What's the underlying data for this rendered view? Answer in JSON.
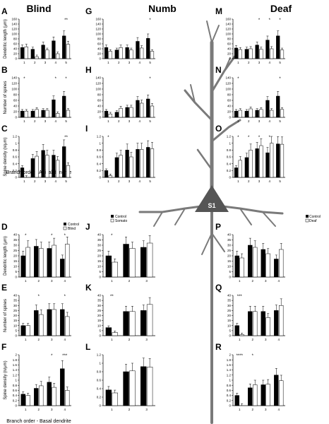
{
  "column_titles": [
    "Blind",
    "Numb",
    "Deaf"
  ],
  "center_label": "S1",
  "bottom_labels": {
    "apical": "Branch order - Apical dendrite",
    "basal": "Branch order - Basal dendrite"
  },
  "legend": {
    "blind": {
      "control": "Control",
      "other": "Blind"
    },
    "numb": {
      "control": "Control",
      "other": "Somato"
    },
    "deaf": {
      "control": "Control",
      "other": "Deaf"
    }
  },
  "colors": {
    "control": "#000000",
    "experimental": "#ffffff",
    "neuron": "#7a7a7a",
    "soma": "#555555"
  },
  "chart_data": [
    {
      "panel": "A",
      "type": "bar",
      "ylabel": "Dendritic length (μm)",
      "ylim": [
        0,
        160
      ],
      "yticks": [
        0,
        20,
        40,
        60,
        80,
        100,
        120,
        140,
        160
      ],
      "categories": [
        "1",
        "2",
        "3",
        "4",
        "5"
      ],
      "series": [
        {
          "name": "Control",
          "values": [
            45,
            38,
            55,
            72,
            92
          ]
        },
        {
          "name": "Blind",
          "values": [
            48,
            8,
            35,
            20,
            58
          ]
        }
      ],
      "stars": [
        "",
        "",
        "",
        "",
        "**"
      ]
    },
    {
      "panel": "B",
      "type": "bar",
      "ylabel": "Number of spines",
      "ylim": [
        0,
        140
      ],
      "yticks": [
        0,
        20,
        40,
        60,
        80,
        100,
        120,
        140
      ],
      "categories": [
        "1",
        "2",
        "3",
        "4",
        "5"
      ],
      "series": [
        {
          "name": "Control",
          "values": [
            22,
            22,
            25,
            62,
            75
          ]
        },
        {
          "name": "Blind",
          "values": [
            22,
            28,
            25,
            14,
            25
          ]
        }
      ],
      "stars": [
        "*",
        "",
        "",
        "*",
        "*"
      ]
    },
    {
      "panel": "C",
      "type": "bar",
      "ylabel": "Spine density (n/μm)",
      "ylim": [
        0,
        1.2
      ],
      "yticks": [
        0,
        0.2,
        0.4,
        0.6,
        0.8,
        1,
        1.2
      ],
      "categories": [
        "1",
        "2",
        "3",
        "4",
        "5"
      ],
      "series": [
        {
          "name": "Control",
          "values": [
            0.28,
            0.55,
            0.79,
            0.65,
            0.9
          ]
        },
        {
          "name": "Blind",
          "values": [
            0,
            0.62,
            0.65,
            0.5,
            0.35
          ]
        }
      ],
      "stars": [
        "",
        "",
        "",
        "",
        "**"
      ]
    },
    {
      "panel": "D",
      "type": "bar",
      "ylabel": "Dendritic length (μm)",
      "ylim": [
        0,
        40
      ],
      "yticks": [
        0,
        5,
        10,
        15,
        20,
        25,
        30,
        35,
        40
      ],
      "categories": [
        "1",
        "2",
        "3",
        "4"
      ],
      "series": [
        {
          "name": "Control",
          "values": [
            20,
            29,
            27,
            17
          ]
        },
        {
          "name": "Blind",
          "values": [
            28,
            27,
            30,
            31
          ]
        }
      ],
      "stars": [
        "*",
        "",
        "*",
        "*"
      ]
    },
    {
      "panel": "E",
      "type": "bar",
      "ylabel": "Number of spines",
      "ylim": [
        0,
        40
      ],
      "yticks": [
        0,
        5,
        10,
        15,
        20,
        25,
        30,
        35,
        40
      ],
      "categories": [
        "1",
        "2",
        "3",
        "4"
      ],
      "series": [
        {
          "name": "Control",
          "values": [
            10,
            25,
            26,
            26
          ]
        },
        {
          "name": "Blind",
          "values": [
            10,
            21,
            26,
            19
          ]
        }
      ],
      "stars": [
        "",
        "*",
        "",
        "*"
      ]
    },
    {
      "panel": "F",
      "type": "bar",
      "ylabel": "Spine density (n/μm)",
      "ylim": [
        0,
        2
      ],
      "yticks": [
        0,
        0.2,
        0.4,
        0.6,
        0.8,
        1,
        1.2,
        1.4,
        1.6,
        1.8,
        2
      ],
      "categories": [
        "1",
        "2",
        "3",
        "4"
      ],
      "series": [
        {
          "name": "Control",
          "values": [
            0.45,
            0.68,
            0.92,
            1.45
          ]
        },
        {
          "name": "Blind",
          "values": [
            0.4,
            0.78,
            0.72,
            0.6
          ]
        }
      ],
      "stars": [
        "",
        "",
        "*",
        "***"
      ]
    },
    {
      "panel": "G",
      "type": "bar",
      "ylabel": "",
      "ylim": [
        0,
        160
      ],
      "yticks": [
        0,
        20,
        40,
        60,
        80,
        100,
        120,
        140,
        160
      ],
      "categories": [
        "1",
        "2",
        "3",
        "4",
        "5"
      ],
      "series": [
        {
          "name": "Control",
          "values": [
            45,
            35,
            45,
            70,
            82
          ]
        },
        {
          "name": "Somato",
          "values": [
            30,
            45,
            35,
            43,
            30
          ]
        }
      ],
      "stars": [
        "",
        "",
        "",
        "",
        "*"
      ]
    },
    {
      "panel": "H",
      "type": "bar",
      "ylabel": "",
      "ylim": [
        0,
        140
      ],
      "yticks": [
        0,
        20,
        40,
        60,
        80,
        100,
        120,
        140
      ],
      "categories": [
        "1",
        "2",
        "3",
        "4",
        "5"
      ],
      "series": [
        {
          "name": "Control",
          "values": [
            22,
            18,
            35,
            60,
            65
          ]
        },
        {
          "name": "Somato",
          "values": [
            12,
            32,
            35,
            50,
            40
          ]
        }
      ],
      "stars": [
        "",
        "",
        "",
        "",
        "*"
      ]
    },
    {
      "panel": "I",
      "type": "bar",
      "ylabel": "",
      "ylim": [
        0,
        1.2
      ],
      "yticks": [
        0,
        0.2,
        0.4,
        0.6,
        0.8,
        1,
        1.2
      ],
      "categories": [
        "1",
        "2",
        "3",
        "4",
        "5"
      ],
      "series": [
        {
          "name": "Control",
          "values": [
            0.2,
            0.58,
            0.8,
            0.82,
            0.88
          ]
        },
        {
          "name": "Somato",
          "values": [
            0.05,
            0.65,
            0.6,
            0.82,
            0.84
          ]
        }
      ],
      "stars": [
        "*",
        "",
        "",
        "",
        ""
      ]
    },
    {
      "panel": "J",
      "type": "bar",
      "ylabel": "",
      "ylim": [
        0,
        40
      ],
      "yticks": [
        0,
        5,
        10,
        15,
        20,
        25,
        30,
        35,
        40
      ],
      "categories": [
        "1",
        "2",
        "3"
      ],
      "series": [
        {
          "name": "Control",
          "values": [
            20,
            31,
            28
          ]
        },
        {
          "name": "Somato",
          "values": [
            14,
            27,
            32
          ]
        }
      ],
      "stars": [
        "*",
        "",
        ""
      ]
    },
    {
      "panel": "K",
      "type": "bar",
      "ylabel": "",
      "ylim": [
        0,
        40
      ],
      "yticks": [
        0,
        5,
        10,
        15,
        20,
        25,
        30,
        35,
        40
      ],
      "categories": [
        "1",
        "2",
        "3"
      ],
      "series": [
        {
          "name": "Control",
          "values": [
            8,
            24,
            25
          ]
        },
        {
          "name": "Somato",
          "values": [
            3,
            24,
            31
          ]
        }
      ],
      "stars": [
        "**",
        "",
        ""
      ]
    },
    {
      "panel": "L",
      "type": "bar",
      "ylabel": "",
      "ylim": [
        0,
        1.2
      ],
      "yticks": [
        0,
        0.2,
        0.4,
        0.6,
        0.8,
        1,
        1.2
      ],
      "categories": [
        "1",
        "2",
        "3"
      ],
      "series": [
        {
          "name": "Control",
          "values": [
            0.37,
            0.8,
            0.92
          ]
        },
        {
          "name": "Somato",
          "values": [
            0.3,
            0.82,
            0.91
          ]
        }
      ],
      "stars": [
        "",
        "",
        ""
      ]
    },
    {
      "panel": "M",
      "type": "bar",
      "ylabel": "",
      "ylim": [
        0,
        160
      ],
      "yticks": [
        0,
        20,
        40,
        60,
        80,
        100,
        120,
        140,
        160
      ],
      "categories": [
        "1",
        "2",
        "3",
        "4",
        "5"
      ],
      "series": [
        {
          "name": "Control",
          "values": [
            43,
            38,
            55,
            75,
            92
          ]
        },
        {
          "name": "Deaf",
          "values": [
            37,
            40,
            38,
            40,
            35
          ]
        }
      ],
      "stars": [
        "",
        "",
        "*",
        "*",
        "*"
      ]
    },
    {
      "panel": "N",
      "type": "bar",
      "ylabel": "",
      "ylim": [
        0,
        140
      ],
      "yticks": [
        0,
        20,
        40,
        60,
        80,
        100,
        120,
        140
      ],
      "categories": [
        "1",
        "2",
        "3",
        "4",
        "5"
      ],
      "series": [
        {
          "name": "Control",
          "values": [
            22,
            22,
            25,
            60,
            75
          ]
        },
        {
          "name": "Deaf",
          "values": [
            25,
            30,
            28,
            25,
            28
          ]
        }
      ],
      "stars": [
        "*",
        "",
        "",
        "",
        "*"
      ]
    },
    {
      "panel": "O",
      "type": "bar",
      "ylabel": "",
      "ylim": [
        0,
        1.2
      ],
      "yticks": [
        0,
        0.2,
        0.4,
        0.6,
        0.8,
        1,
        1.2
      ],
      "categories": [
        "1",
        "2",
        "3",
        "4",
        "5"
      ],
      "series": [
        {
          "name": "Control",
          "values": [
            0.28,
            0.58,
            0.84,
            0.72,
            0.98
          ]
        },
        {
          "name": "Deaf",
          "values": [
            0.5,
            0.8,
            0.93,
            1.0,
            0.97
          ]
        }
      ],
      "stars": [
        "*",
        "*",
        "*",
        "*",
        ""
      ]
    },
    {
      "panel": "P",
      "type": "bar",
      "ylabel": "",
      "ylim": [
        0,
        40
      ],
      "yticks": [
        0,
        5,
        10,
        15,
        20,
        25,
        30,
        35,
        40
      ],
      "categories": [
        "1",
        "2",
        "3",
        "4"
      ],
      "series": [
        {
          "name": "Control",
          "values": [
            20,
            30,
            26,
            17
          ]
        },
        {
          "name": "Deaf",
          "values": [
            18,
            28,
            22,
            26
          ]
        }
      ],
      "stars": [
        "",
        "",
        "",
        ""
      ]
    },
    {
      "panel": "Q",
      "type": "bar",
      "ylabel": "",
      "ylim": [
        0,
        40
      ],
      "yticks": [
        0,
        5,
        10,
        15,
        20,
        25,
        30,
        35,
        40
      ],
      "categories": [
        "1",
        "2",
        "3",
        "4"
      ],
      "series": [
        {
          "name": "Control",
          "values": [
            10,
            24,
            24,
            25
          ]
        },
        {
          "name": "Deaf",
          "values": [
            1,
            24,
            18,
            30
          ]
        }
      ],
      "stars": [
        "***",
        "",
        "",
        ""
      ]
    },
    {
      "panel": "R",
      "type": "bar",
      "ylabel": "",
      "ylim": [
        0,
        2
      ],
      "yticks": [
        0,
        0.2,
        0.4,
        0.6,
        0.8,
        1,
        1.2,
        1.4,
        1.6,
        1.8,
        2
      ],
      "categories": [
        "1",
        "2",
        "3",
        "4"
      ],
      "series": [
        {
          "name": "Control",
          "values": [
            0.4,
            0.7,
            0.82,
            1.2
          ]
        },
        {
          "name": "Deaf",
          "values": [
            0,
            0.82,
            0.84,
            0.98
          ]
        }
      ],
      "stars": [
        "****",
        "*",
        "",
        ""
      ]
    }
  ]
}
